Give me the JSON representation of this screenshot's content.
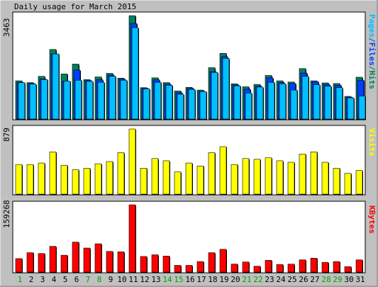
{
  "title": "Daily usage for March 2015",
  "colors": {
    "background": "#C0C0C0",
    "panel": "#FFFFFF",
    "hits": "#00805C",
    "files": "#0040FF",
    "pages": "#00C0FF",
    "visits": "#FFFF00",
    "kbytes": "#FF0000",
    "weekend": "#00A000",
    "weekday": "#000000"
  },
  "chart_data": [
    {
      "type": "bar",
      "title": "Pages/Files/Hits",
      "legend": [
        "Pages",
        "Files",
        "Hits"
      ],
      "ymax_label": "3463",
      "ylim": [
        0,
        3463
      ],
      "categories": [
        "1",
        "2",
        "3",
        "4",
        "5",
        "6",
        "7",
        "8",
        "9",
        "10",
        "11",
        "12",
        "13",
        "14",
        "15",
        "16",
        "17",
        "18",
        "19",
        "20",
        "21",
        "22",
        "23",
        "24",
        "25",
        "26",
        "27",
        "28",
        "29",
        "30",
        "31"
      ],
      "series": [
        {
          "name": "Hits",
          "values": [
            1280,
            1220,
            1430,
            2330,
            1510,
            1840,
            1320,
            1410,
            1530,
            1370,
            3460,
            1050,
            1380,
            1220,
            940,
            1060,
            970,
            1720,
            2200,
            1180,
            1080,
            1160,
            1460,
            1280,
            1240,
            1690,
            1280,
            1210,
            1190,
            760,
            1400
          ]
        },
        {
          "name": "Files",
          "values": [
            1230,
            1190,
            1340,
            2180,
            1270,
            1640,
            1290,
            1320,
            1470,
            1330,
            3200,
            1030,
            1310,
            1170,
            880,
            1030,
            930,
            1590,
            2090,
            1140,
            1000,
            1100,
            1380,
            1220,
            1190,
            1540,
            1250,
            1160,
            1130,
            730,
            1300
          ]
        },
        {
          "name": "Pages",
          "values": [
            1220,
            1170,
            1320,
            2180,
            1270,
            1300,
            1260,
            1230,
            1430,
            1300,
            3060,
            1010,
            1230,
            1130,
            830,
            990,
            920,
            1560,
            2030,
            1110,
            870,
            1070,
            1230,
            1180,
            970,
            1430,
            1150,
            1100,
            1050,
            710,
            770
          ]
        }
      ]
    },
    {
      "type": "bar",
      "title": "Visits",
      "legend": [
        "Visits"
      ],
      "ymax_label": "879",
      "ylim": [
        0,
        879
      ],
      "categories": [
        "1",
        "2",
        "3",
        "4",
        "5",
        "6",
        "7",
        "8",
        "9",
        "10",
        "11",
        "12",
        "13",
        "14",
        "15",
        "16",
        "17",
        "18",
        "19",
        "20",
        "21",
        "22",
        "23",
        "24",
        "25",
        "26",
        "27",
        "28",
        "29",
        "30",
        "31"
      ],
      "series": [
        {
          "name": "Visits",
          "values": [
            400,
            400,
            420,
            570,
            390,
            330,
            350,
            410,
            440,
            560,
            879,
            350,
            480,
            450,
            300,
            420,
            380,
            560,
            640,
            400,
            480,
            470,
            490,
            450,
            430,
            540,
            570,
            430,
            350,
            280,
            320
          ]
        }
      ]
    },
    {
      "type": "bar",
      "title": "KBytes",
      "legend": [
        "KBytes"
      ],
      "ymax_label": "159268",
      "ylim": [
        0,
        159268
      ],
      "categories": [
        "1",
        "2",
        "3",
        "4",
        "5",
        "6",
        "7",
        "8",
        "9",
        "10",
        "11",
        "12",
        "13",
        "14",
        "15",
        "16",
        "17",
        "18",
        "19",
        "20",
        "21",
        "22",
        "23",
        "24",
        "25",
        "26",
        "27",
        "28",
        "29",
        "30",
        "31"
      ],
      "series": [
        {
          "name": "KBytes",
          "values": [
            32000,
            46000,
            44000,
            61000,
            40000,
            71000,
            57000,
            67000,
            49000,
            48000,
            159268,
            37000,
            41000,
            38000,
            16000,
            16000,
            25000,
            46000,
            54000,
            19000,
            24000,
            14000,
            28000,
            18000,
            19000,
            29000,
            33000,
            23000,
            25000,
            13000,
            29000
          ]
        }
      ]
    }
  ],
  "x_labels": [
    {
      "label": "1",
      "weekend": true
    },
    {
      "label": "2",
      "weekend": false
    },
    {
      "label": "3",
      "weekend": false
    },
    {
      "label": "4",
      "weekend": false
    },
    {
      "label": "5",
      "weekend": false
    },
    {
      "label": "6",
      "weekend": false
    },
    {
      "label": "7",
      "weekend": true
    },
    {
      "label": "8",
      "weekend": true
    },
    {
      "label": "9",
      "weekend": false
    },
    {
      "label": "10",
      "weekend": false
    },
    {
      "label": "11",
      "weekend": false
    },
    {
      "label": "12",
      "weekend": false
    },
    {
      "label": "13",
      "weekend": false
    },
    {
      "label": "14",
      "weekend": true
    },
    {
      "label": "15",
      "weekend": true
    },
    {
      "label": "16",
      "weekend": false
    },
    {
      "label": "17",
      "weekend": false
    },
    {
      "label": "18",
      "weekend": false
    },
    {
      "label": "19",
      "weekend": false
    },
    {
      "label": "20",
      "weekend": false
    },
    {
      "label": "21",
      "weekend": true
    },
    {
      "label": "22",
      "weekend": true
    },
    {
      "label": "23",
      "weekend": false
    },
    {
      "label": "24",
      "weekend": false
    },
    {
      "label": "25",
      "weekend": false
    },
    {
      "label": "26",
      "weekend": false
    },
    {
      "label": "27",
      "weekend": false
    },
    {
      "label": "28",
      "weekend": true
    },
    {
      "label": "29",
      "weekend": true
    },
    {
      "label": "30",
      "weekend": false
    },
    {
      "label": "31",
      "weekend": false
    }
  ]
}
